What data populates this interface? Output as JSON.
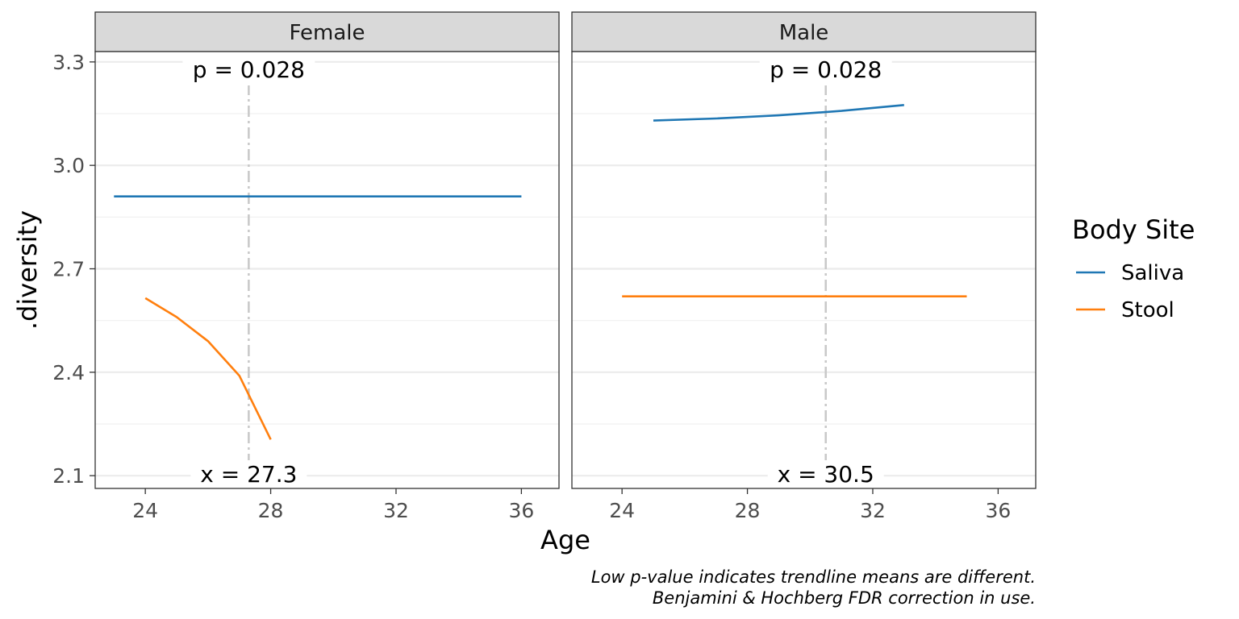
{
  "chart_data": {
    "type": "line",
    "xlabel": "Age",
    "ylabel": ".diversity",
    "xlim": [
      22.4,
      37.2
    ],
    "ylim": [
      2.063,
      3.33
    ],
    "x_ticks": [
      "24",
      "28",
      "32",
      "36"
    ],
    "y_ticks": [
      "2.1",
      "2.4",
      "2.7",
      "3.0",
      "3.3"
    ],
    "grid": true,
    "legend": {
      "title": "Body Site",
      "position": "right",
      "entries": [
        "Saliva",
        "Stool"
      ]
    },
    "colors": {
      "Saliva": "#1f77b4",
      "Stool": "#ff7f0e"
    },
    "facets": [
      {
        "name": "Female",
        "series": [
          {
            "name": "Saliva",
            "x": [
              23,
              36
            ],
            "y": [
              2.91,
              2.91
            ]
          },
          {
            "name": "Stool",
            "x": [
              24,
              25,
              26,
              27,
              28
            ],
            "y": [
              2.615,
              2.56,
              2.49,
              2.39,
              2.205
            ]
          }
        ],
        "vline_x": 27.3,
        "p_label": "p = 0.028",
        "x_label": "x = 27.3"
      },
      {
        "name": "Male",
        "series": [
          {
            "name": "Saliva",
            "x": [
              25,
              27,
              29,
              31,
              33
            ],
            "y": [
              3.13,
              3.136,
              3.145,
              3.158,
              3.175
            ]
          },
          {
            "name": "Stool",
            "x": [
              24,
              35
            ],
            "y": [
              2.62,
              2.62
            ]
          }
        ],
        "vline_x": 30.5,
        "p_label": "p = 0.028",
        "x_label": "x = 30.5"
      }
    ],
    "caption": [
      "Low p-value indicates trendline means are different.",
      "Benjamini & Hochberg FDR correction in use."
    ]
  }
}
